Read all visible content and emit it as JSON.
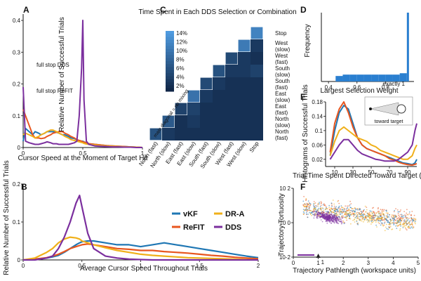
{
  "colors": {
    "vKF": "#1f77b4",
    "ReFIT": "#e8561f",
    "DR-A": "#f0b01a",
    "DDS": "#7b2f9e",
    "heat_low": "#0d2140",
    "heat_high": "#4f9be0"
  },
  "panels": {
    "A": "A",
    "B": "B",
    "C": "C",
    "D": "D",
    "E": "E",
    "F": "F"
  },
  "chart_data": [
    {
      "id": "A",
      "type": "line",
      "xlabel": "Cursor Speed at the Moment of Target Hit",
      "ylabel": "Relative Number of Successful Trials",
      "xlim": [
        0,
        1
      ],
      "ylim": [
        0,
        0.42
      ],
      "xticks": [
        {
          "v": 0,
          "t": "0"
        },
        {
          "v": 0.5,
          "t": "0.5"
        },
        {
          "v": 1,
          "t": "1"
        }
      ],
      "yticks": [
        {
          "v": 0,
          "t": "0"
        },
        {
          "v": 0.1,
          "t": "0.1"
        },
        {
          "v": 0.2,
          "t": "0.2"
        },
        {
          "v": 0.3,
          "t": "0.3"
        },
        {
          "v": 0.4,
          "t": "0.4"
        }
      ],
      "annotations": [
        {
          "text": "full stop DDS",
          "color": "DDS"
        },
        {
          "text": "full stop ReFIT",
          "color": "ReFIT"
        }
      ],
      "x": [
        0,
        0.02,
        0.05,
        0.08,
        0.1,
        0.13,
        0.15,
        0.18,
        0.2,
        0.23,
        0.25,
        0.28,
        0.3,
        0.33,
        0.35,
        0.38,
        0.4,
        0.43,
        0.45,
        0.47,
        0.49,
        0.5,
        0.51,
        0.53,
        0.55,
        0.6,
        0.65,
        0.7,
        0.75,
        0.8,
        0.85,
        0.9,
        0.95,
        1.0
      ],
      "series": [
        {
          "name": "vKF",
          "values": [
            0.02,
            0.06,
            0.05,
            0.04,
            0.05,
            0.045,
            0.04,
            0.045,
            0.05,
            0.05,
            0.05,
            0.048,
            0.045,
            0.04,
            0.04,
            0.035,
            0.03,
            0.028,
            0.025,
            0.022,
            0.02,
            0.02,
            0.018,
            0.015,
            0.012,
            0.01,
            0.008,
            0.006,
            0.005,
            0.004,
            0.003,
            0.002,
            0.001,
            0.0
          ]
        },
        {
          "name": "ReFIT",
          "values": [
            0.12,
            0.1,
            0.07,
            0.04,
            0.03,
            0.03,
            0.028,
            0.03,
            0.035,
            0.04,
            0.045,
            0.048,
            0.05,
            0.05,
            0.045,
            0.04,
            0.035,
            0.03,
            0.025,
            0.022,
            0.02,
            0.018,
            0.017,
            0.015,
            0.012,
            0.01,
            0.008,
            0.006,
            0.005,
            0.004,
            0.003,
            0.002,
            0.001,
            0.0
          ]
        },
        {
          "name": "DR-A",
          "values": [
            0.04,
            0.045,
            0.04,
            0.035,
            0.03,
            0.035,
            0.04,
            0.045,
            0.05,
            0.055,
            0.055,
            0.05,
            0.045,
            0.04,
            0.035,
            0.03,
            0.025,
            0.022,
            0.02,
            0.018,
            0.016,
            0.015,
            0.013,
            0.011,
            0.01,
            0.008,
            0.006,
            0.005,
            0.004,
            0.003,
            0.002,
            0.002,
            0.001,
            0.0
          ]
        },
        {
          "name": "DDS",
          "values": [
            0.19,
            0.02,
            0.015,
            0.012,
            0.01,
            0.01,
            0.012,
            0.015,
            0.018,
            0.015,
            0.012,
            0.012,
            0.01,
            0.01,
            0.01,
            0.01,
            0.012,
            0.015,
            0.02,
            0.1,
            0.25,
            0.4,
            0.15,
            0.02,
            0.01,
            0.005,
            0.004,
            0.003,
            0.002,
            0.002,
            0.001,
            0.001,
            0.0,
            0.0
          ]
        }
      ]
    },
    {
      "id": "B",
      "type": "line",
      "xlabel": "Average Cursor Speed Throughout Trials",
      "ylabel": "Relative Number of Successful Trials",
      "xlim": [
        0,
        2
      ],
      "ylim": [
        0,
        0.2
      ],
      "xticks": [
        {
          "v": 0,
          "t": "0"
        },
        {
          "v": 0.5,
          "t": "0.5"
        },
        {
          "v": 1,
          "t": "1"
        },
        {
          "v": 1.5,
          "t": "1.5"
        },
        {
          "v": 2,
          "t": "2"
        }
      ],
      "yticks": [
        {
          "v": 0,
          "t": "0"
        },
        {
          "v": 0.1,
          "t": "0.1"
        },
        {
          "v": 0.2,
          "t": "0.2"
        }
      ],
      "legend": [
        "vKF",
        "DR-A",
        "ReFIT",
        "DDS"
      ],
      "x": [
        0,
        0.1,
        0.2,
        0.25,
        0.3,
        0.35,
        0.4,
        0.45,
        0.48,
        0.5,
        0.55,
        0.6,
        0.7,
        0.8,
        0.9,
        1.0,
        1.1,
        1.2,
        1.3,
        1.4,
        1.5,
        1.6,
        1.7,
        1.8,
        1.9,
        2.0
      ],
      "series": [
        {
          "name": "vKF",
          "values": [
            0,
            0.002,
            0.005,
            0.008,
            0.012,
            0.02,
            0.03,
            0.04,
            0.045,
            0.048,
            0.05,
            0.05,
            0.045,
            0.04,
            0.04,
            0.035,
            0.04,
            0.045,
            0.04,
            0.035,
            0.03,
            0.025,
            0.02,
            0.015,
            0.01,
            0.006
          ]
        },
        {
          "name": "ReFIT",
          "values": [
            0,
            0.002,
            0.006,
            0.01,
            0.015,
            0.022,
            0.03,
            0.035,
            0.038,
            0.04,
            0.042,
            0.04,
            0.035,
            0.03,
            0.028,
            0.025,
            0.025,
            0.022,
            0.02,
            0.018,
            0.015,
            0.012,
            0.01,
            0.007,
            0.005,
            0.003
          ]
        },
        {
          "name": "DR-A",
          "values": [
            0,
            0.005,
            0.02,
            0.03,
            0.045,
            0.055,
            0.06,
            0.058,
            0.055,
            0.05,
            0.045,
            0.04,
            0.032,
            0.025,
            0.02,
            0.015,
            0.012,
            0.01,
            0.008,
            0.006,
            0.005,
            0.004,
            0.003,
            0.002,
            0.001,
            0.0
          ]
        },
        {
          "name": "DDS",
          "values": [
            0,
            0.0,
            0.005,
            0.01,
            0.03,
            0.06,
            0.1,
            0.15,
            0.17,
            0.14,
            0.07,
            0.03,
            0.01,
            0.005,
            0.002,
            0.001,
            0,
            0,
            0,
            0,
            0,
            0,
            0,
            0,
            0,
            0
          ]
        }
      ]
    },
    {
      "id": "C",
      "type": "heatmap",
      "title": "Time Spent in Each DDS Selection or Combination",
      "categories": [
        "North (fast)",
        "North (slow)",
        "East (fast)",
        "East (slow)",
        "South (fast)",
        "South (slow)",
        "West (fast)",
        "West (slow)",
        "Stop"
      ],
      "row_labels": [
        "Stop",
        "West (slow)",
        "West (fast)",
        "South (slow)",
        "South (fast)",
        "East (slow)",
        "East (fast)",
        "North (slow)",
        "North (fast)"
      ],
      "colorbar_ticks": [
        "14%",
        "12%",
        "10%",
        "8%",
        "6%",
        "4%",
        "2%"
      ],
      "vmax": 15,
      "diagonal_note": "main diagonal = no mixing",
      "values": [
        [
          null,
          null,
          null,
          null,
          null,
          null,
          null,
          null,
          12
        ],
        [
          null,
          null,
          null,
          null,
          null,
          null,
          null,
          11,
          3
        ],
        [
          null,
          null,
          null,
          null,
          null,
          null,
          5,
          3,
          2
        ],
        [
          null,
          null,
          null,
          null,
          null,
          6,
          3,
          3,
          4
        ],
        [
          null,
          null,
          null,
          null,
          5,
          3,
          2,
          2,
          2
        ],
        [
          null,
          null,
          null,
          10,
          3,
          2,
          2,
          2,
          2
        ],
        [
          null,
          null,
          4,
          4,
          2,
          2,
          2,
          2,
          2
        ],
        [
          null,
          7,
          2,
          3,
          2,
          2,
          2,
          2,
          2
        ],
        [
          6,
          3,
          2,
          2,
          2,
          2,
          2,
          2,
          2
        ]
      ]
    },
    {
      "id": "D",
      "type": "bar",
      "xlabel": "Largest Selection Weight",
      "ylabel": "Frequency",
      "xlim": [
        0.35,
        1.0
      ],
      "xticks": [
        {
          "v": 0.4,
          "t": "0.4"
        },
        {
          "v": 0.6,
          "t": "0.6"
        },
        {
          "v": 0.8,
          "t": "0.8"
        }
      ],
      "annotation": "exactly 1",
      "x": [
        0.5,
        0.55,
        0.6,
        0.65,
        0.7,
        0.75,
        0.8,
        0.85,
        0.9,
        0.95,
        1.0
      ],
      "values": [
        0.08,
        0.1,
        0.1,
        0.1,
        0.1,
        0.1,
        0.1,
        0.1,
        0.1,
        0.12,
        1.0
      ]
    },
    {
      "id": "E",
      "type": "line",
      "xlabel": "Trial Time Spent Directed Toward Target (%)",
      "ylabel": "Histograms of Successful Trials",
      "xlim": [
        0,
        100
      ],
      "ylim": [
        0,
        0.18
      ],
      "xticks": [
        {
          "v": 10,
          "t": "10"
        },
        {
          "v": 30,
          "t": "30"
        },
        {
          "v": 50,
          "t": "50"
        },
        {
          "v": 70,
          "t": "70"
        },
        {
          "v": 90,
          "t": "90"
        }
      ],
      "yticks": [
        {
          "v": 0.02,
          "t": "0.02"
        },
        {
          "v": 0.06,
          "t": "0.06"
        },
        {
          "v": 0.1,
          "t": "0.1"
        },
        {
          "v": 0.14,
          "t": "0.14"
        },
        {
          "v": 0.18,
          "t": "0.18"
        }
      ],
      "inset_label": "toward target",
      "x": [
        5,
        10,
        15,
        20,
        25,
        30,
        35,
        40,
        45,
        50,
        55,
        60,
        65,
        70,
        75,
        80,
        85,
        90,
        95,
        98,
        100
      ],
      "series": [
        {
          "name": "vKF",
          "values": [
            0.03,
            0.1,
            0.15,
            0.17,
            0.16,
            0.12,
            0.08,
            0.06,
            0.05,
            0.045,
            0.04,
            0.035,
            0.03,
            0.025,
            0.02,
            0.015,
            0.01,
            0.008,
            0.005,
            0.01,
            0.02
          ]
        },
        {
          "name": "ReFIT",
          "values": [
            0.04,
            0.12,
            0.16,
            0.18,
            0.15,
            0.11,
            0.08,
            0.06,
            0.05,
            0.045,
            0.04,
            0.035,
            0.03,
            0.022,
            0.018,
            0.012,
            0.008,
            0.005,
            0.004,
            0.006,
            0.008
          ]
        },
        {
          "name": "DR-A",
          "values": [
            0.03,
            0.07,
            0.1,
            0.11,
            0.1,
            0.09,
            0.08,
            0.075,
            0.07,
            0.06,
            0.055,
            0.045,
            0.04,
            0.035,
            0.03,
            0.025,
            0.02,
            0.02,
            0.03,
            0.05,
            0.06
          ]
        },
        {
          "name": "DDS",
          "values": [
            0.02,
            0.04,
            0.06,
            0.075,
            0.075,
            0.06,
            0.045,
            0.035,
            0.03,
            0.025,
            0.02,
            0.018,
            0.015,
            0.015,
            0.015,
            0.02,
            0.03,
            0.04,
            0.06,
            0.1,
            0.12
          ]
        }
      ]
    },
    {
      "id": "F",
      "type": "scatter",
      "xlabel": "Trajectory Pathlength (workspace units)",
      "ylabel": "Trajectory Tortuosity",
      "xlim": [
        0,
        5
      ],
      "ylim_log": [
        -2,
        2
      ],
      "yscale": "log",
      "xticks": [
        {
          "v": 0,
          "t": "0"
        },
        {
          "v": 1,
          "t": "1"
        },
        {
          "v": 2,
          "t": "2"
        },
        {
          "v": 3,
          "t": "3"
        },
        {
          "v": 4,
          "t": "4"
        },
        {
          "v": 5,
          "t": "5"
        }
      ],
      "yticks": [
        {
          "v": -2,
          "t": "10-2"
        },
        {
          "v": 0,
          "t": "10 0"
        },
        {
          "v": 2,
          "t": "10 2"
        }
      ],
      "marker": "1",
      "clusters": [
        {
          "name": "ReFIT",
          "x_center": 2.3,
          "x_spread": 1.6,
          "logy_center": 0.6,
          "logy_spread": 0.45,
          "slope": -0.2
        },
        {
          "name": "vKF",
          "x_center": 2.8,
          "x_spread": 1.6,
          "logy_center": 0.4,
          "logy_spread": 0.45,
          "slope": -0.2
        },
        {
          "name": "DR-A",
          "x_center": 2.0,
          "x_spread": 1.3,
          "logy_center": 0.5,
          "logy_spread": 0.45,
          "slope": -0.2
        },
        {
          "name": "DDS",
          "x_center": 1.4,
          "x_spread": 0.5,
          "logy_center": 0.3,
          "logy_spread": 0.25,
          "slope": -0.3
        }
      ]
    }
  ]
}
